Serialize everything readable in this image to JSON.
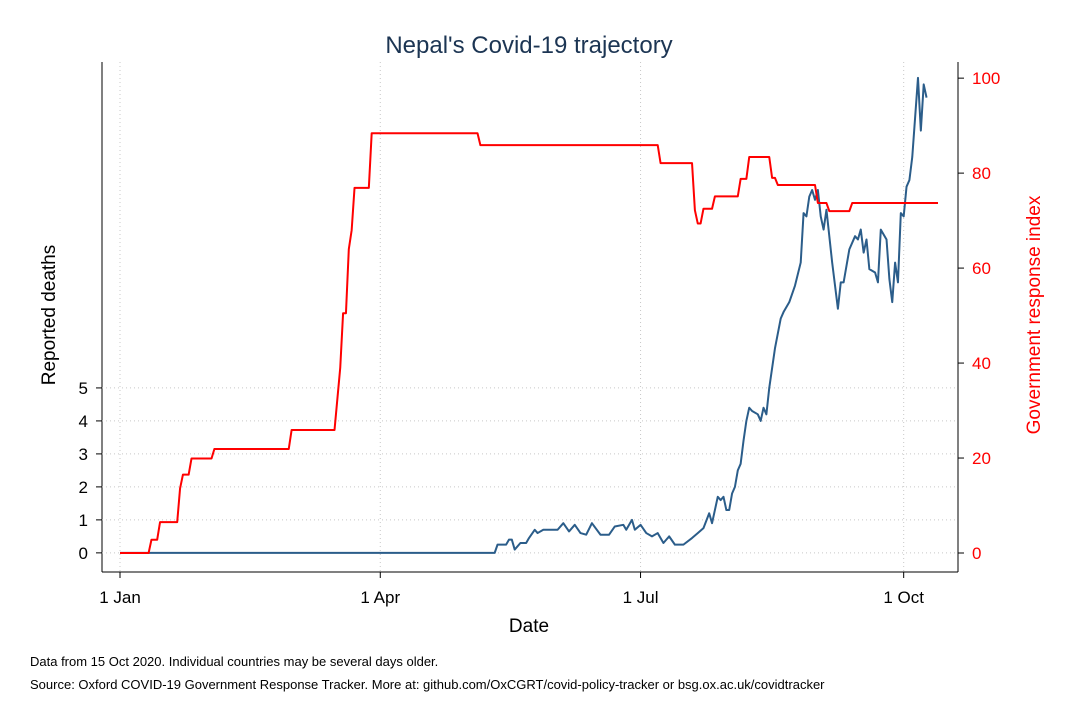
{
  "chart_data": {
    "type": "line",
    "title": "Nepal's Covid-19 trajectory",
    "xlabel": "Date",
    "ylabel": "Reported deaths",
    "y2label": "Government response index",
    "notes": [
      "Data from 15 Oct 2020. Individual countries may be several days older.",
      "Source: Oxford COVID-19 Government Response Tracker. More at: github.com/OxCGRT/covid-policy-tracker or bsg.ox.ac.uk/covidtracker"
    ],
    "xlim": [
      "1 Jan",
      "13 Oct"
    ],
    "xticks": [
      "1 Jan",
      "1 Apr",
      "1 Jul",
      "1 Oct"
    ],
    "ylim": [
      -0.58,
      14.88
    ],
    "yticks": [
      0,
      1,
      2,
      3,
      4,
      5
    ],
    "y2lim": [
      -4,
      103.4
    ],
    "y2ticks": [
      0,
      20,
      40,
      60,
      80,
      100
    ],
    "grid": true,
    "series": [
      {
        "color": "#2b5d8a",
        "x": [
          "1 Jan",
          "11 May",
          "12 May",
          "15 May",
          "16 May",
          "17 May",
          "18 May",
          "20 May",
          "22 May",
          "23 May",
          "25 May",
          "26 May",
          "28 May",
          "2 Jun",
          "4 Jun",
          "6 Jun",
          "8 Jun",
          "10 Jun",
          "12 Jun",
          "14 Jun",
          "17 Jun",
          "20 Jun",
          "22 Jun",
          "25 Jun",
          "26 Jun",
          "28 Jun",
          "29 Jun",
          "1 Jul",
          "3 Jul",
          "5 Jul",
          "7 Jul",
          "9 Jul",
          "11 Jul",
          "13 Jul",
          "16 Jul",
          "19 Jul",
          "21 Jul",
          "23 Jul",
          "25 Jul",
          "26 Jul",
          "28 Jul",
          "29 Jul",
          "30 Jul",
          "31 Jul",
          "1 Aug",
          "2 Aug",
          "3 Aug",
          "4 Aug",
          "5 Aug",
          "6 Aug",
          "7 Aug",
          "8 Aug",
          "9 Aug",
          "11 Aug",
          "12 Aug",
          "13 Aug",
          "14 Aug",
          "15 Aug",
          "17 Aug",
          "19 Aug",
          "20 Aug",
          "22 Aug",
          "24 Aug",
          "26 Aug",
          "27 Aug",
          "28 Aug",
          "29 Aug",
          "30 Aug",
          "31 Aug",
          "1 Sep",
          "2 Sep",
          "3 Sep",
          "4 Sep",
          "6 Sep",
          "8 Sep",
          "9 Sep",
          "10 Sep",
          "12 Sep",
          "14 Sep",
          "15 Sep",
          "16 Sep",
          "17 Sep",
          "18 Sep",
          "19 Sep",
          "21 Sep",
          "22 Sep",
          "23 Sep",
          "25 Sep",
          "26 Sep",
          "27 Sep",
          "28 Sep",
          "29 Sep",
          "30 Sep",
          "1 Oct",
          "2 Oct",
          "3 Oct",
          "4 Oct",
          "5 Oct",
          "6 Oct",
          "7 Oct",
          "8 Oct",
          "9 Oct"
        ],
        "values": [
          0,
          0,
          0.25,
          0.25,
          0.4,
          0.4,
          0.1,
          0.3,
          0.3,
          0.45,
          0.7,
          0.6,
          0.7,
          0.7,
          0.9,
          0.65,
          0.85,
          0.6,
          0.55,
          0.9,
          0.55,
          0.55,
          0.8,
          0.85,
          0.7,
          1.0,
          0.7,
          0.85,
          0.6,
          0.5,
          0.6,
          0.3,
          0.5,
          0.25,
          0.25,
          0.45,
          0.6,
          0.75,
          1.2,
          0.9,
          1.7,
          1.6,
          1.7,
          1.3,
          1.3,
          1.8,
          2.0,
          2.5,
          2.7,
          3.4,
          4.0,
          4.4,
          4.3,
          4.2,
          4.0,
          4.4,
          4.2,
          5.0,
          6.2,
          7.1,
          7.3,
          7.6,
          8.1,
          8.8,
          10.3,
          10.2,
          10.8,
          11.0,
          10.7,
          11.0,
          10.2,
          9.8,
          10.4,
          8.8,
          7.4,
          8.2,
          8.2,
          9.2,
          9.6,
          9.5,
          9.8,
          9.1,
          9.5,
          8.6,
          8.5,
          8.2,
          9.8,
          9.5,
          8.3,
          7.6,
          8.8,
          8.2,
          10.3,
          10.2,
          11.1,
          11.3,
          12.0,
          13.2,
          14.4,
          12.8,
          14.2,
          13.8
        ]
      },
      {
        "color": "#ff0000",
        "axis": "y2",
        "x": [
          "1 Jan",
          "11 Jan",
          "12 Jan",
          "14 Jan",
          "15 Jan",
          "21 Jan",
          "22 Jan",
          "23 Jan",
          "25 Jan",
          "26 Jan",
          "2 Feb",
          "3 Feb",
          "29 Feb",
          "1 Mar",
          "16 Mar",
          "18 Mar",
          "19 Mar",
          "20 Mar",
          "21 Mar",
          "22 Mar",
          "23 Mar",
          "28 Mar",
          "29 Mar",
          "5 May",
          "6 May",
          "7 Jul",
          "8 Jul",
          "19 Jul",
          "20 Jul",
          "21 Jul",
          "22 Jul",
          "23 Jul",
          "26 Jul",
          "27 Jul",
          "4 Aug",
          "5 Aug",
          "7 Aug",
          "8 Aug",
          "15 Aug",
          "16 Aug",
          "17 Aug",
          "18 Aug",
          "31 Aug",
          "1 Sep",
          "4 Sep",
          "5 Sep",
          "12 Sep",
          "13 Sep",
          "13 Oct"
        ],
        "values": [
          0,
          0,
          2.8,
          2.8,
          6.5,
          6.5,
          13.6,
          16.5,
          16.5,
          19.9,
          19.9,
          21.9,
          21.9,
          25.9,
          25.9,
          39,
          50.5,
          50.5,
          64,
          68,
          76.9,
          76.9,
          88.4,
          88.4,
          85.9,
          85.9,
          82.1,
          82.1,
          72.2,
          69.4,
          69.4,
          72.5,
          72.5,
          75.1,
          75.1,
          78.8,
          78.8,
          83.4,
          83.4,
          79,
          79,
          77.5,
          77.5,
          73.7,
          73.7,
          72,
          72,
          73.7,
          73.7
        ]
      }
    ]
  }
}
